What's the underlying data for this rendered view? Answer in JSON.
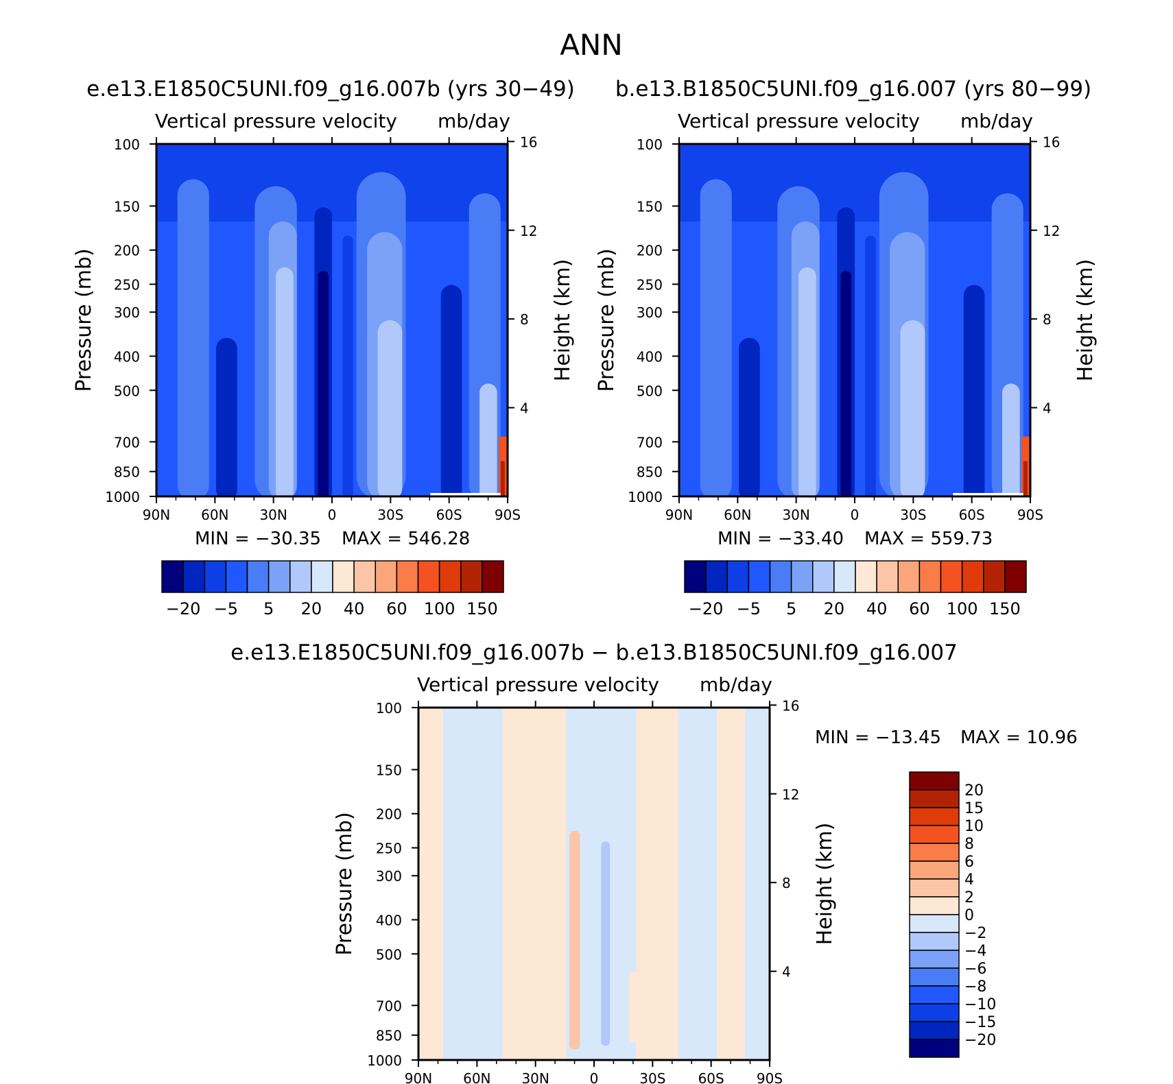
{
  "figure": {
    "title": "ANN",
    "diff_title": "e.e13.E1850C5UNI.f09_g16.007b − b.e13.B1850C5UNI.f09_g16.007"
  },
  "chart_data": [
    {
      "type": "heatmap",
      "case": "e.e13.E1850C5UNI.f09_g16.007b (yrs 30−49)",
      "title": "Vertical pressure velocity",
      "units": "mb/day",
      "xlabel": "",
      "ylabel": "Pressure (mb)",
      "ylabel_right": "Height (km)",
      "x_ticks": [
        "90N",
        "60N",
        "30N",
        "0",
        "30S",
        "60S",
        "90S"
      ],
      "y_ticks": [
        "100",
        "150",
        "200",
        "250",
        "300",
        "400",
        "500",
        "700",
        "850",
        "1000"
      ],
      "y_ticks_right": [
        "16",
        "12",
        "8",
        "4"
      ],
      "ylim": [
        1000,
        100
      ],
      "min_label": "MIN =  −30.35",
      "max_label": "MAX =  546.28",
      "min": -30.35,
      "max": 546.28,
      "colorbar": {
        "orientation": "horizontal",
        "labels": [
          "−20",
          "−5",
          "5",
          "20",
          "40",
          "60",
          "100",
          "150"
        ],
        "colors": [
          "#00007f",
          "#0026bf",
          "#0d3ee6",
          "#2057ff",
          "#4a7df5",
          "#7ba2f7",
          "#b0c9fa",
          "#d8e8fb",
          "#fde8d6",
          "#fcc6a6",
          "#fba57b",
          "#fa7c48",
          "#f45321",
          "#df3b0b",
          "#b22305",
          "#7f0000"
        ]
      }
    },
    {
      "type": "heatmap",
      "case": "b.e13.B1850C5UNI.f09_g16.007 (yrs 80−99)",
      "title": "Vertical pressure velocity",
      "units": "mb/day",
      "xlabel": "",
      "ylabel": "Pressure (mb)",
      "ylabel_right": "Height (km)",
      "x_ticks": [
        "90N",
        "60N",
        "30N",
        "0",
        "30S",
        "60S",
        "90S"
      ],
      "y_ticks": [
        "100",
        "150",
        "200",
        "250",
        "300",
        "400",
        "500",
        "700",
        "850",
        "1000"
      ],
      "y_ticks_right": [
        "16",
        "12",
        "8",
        "4"
      ],
      "ylim": [
        1000,
        100
      ],
      "min_label": "MIN =  −33.40",
      "max_label": "MAX =  559.73",
      "min": -33.4,
      "max": 559.73,
      "colorbar": {
        "orientation": "horizontal",
        "labels": [
          "−20",
          "−5",
          "5",
          "20",
          "40",
          "60",
          "100",
          "150"
        ],
        "colors": [
          "#00007f",
          "#0026bf",
          "#0d3ee6",
          "#2057ff",
          "#4a7df5",
          "#7ba2f7",
          "#b0c9fa",
          "#d8e8fb",
          "#fde8d6",
          "#fcc6a6",
          "#fba57b",
          "#fa7c48",
          "#f45321",
          "#df3b0b",
          "#b22305",
          "#7f0000"
        ]
      }
    },
    {
      "type": "heatmap",
      "case": "difference",
      "title": "Vertical pressure velocity",
      "units": "mb/day",
      "xlabel": "",
      "ylabel": "Pressure (mb)",
      "ylabel_right": "Height (km)",
      "x_ticks": [
        "90N",
        "60N",
        "30N",
        "0",
        "30S",
        "60S",
        "90S"
      ],
      "y_ticks": [
        "100",
        "150",
        "200",
        "250",
        "300",
        "400",
        "500",
        "700",
        "850",
        "1000"
      ],
      "y_ticks_right": [
        "16",
        "12",
        "8",
        "4"
      ],
      "ylim": [
        1000,
        100
      ],
      "min_label": "MIN =  −13.45",
      "max_label": "MAX =    10.96",
      "min": -13.45,
      "max": 10.96,
      "colorbar": {
        "orientation": "vertical",
        "labels": [
          "20",
          "15",
          "10",
          "8",
          "6",
          "4",
          "2",
          "0",
          "−2",
          "−4",
          "−6",
          "−8",
          "−10",
          "−15",
          "−20"
        ],
        "colors": [
          "#7f0000",
          "#b22305",
          "#df3b0b",
          "#f45321",
          "#fa7c48",
          "#fba57b",
          "#fcc6a6",
          "#fde8d6",
          "#d8e8fb",
          "#b0c9fa",
          "#7ba2f7",
          "#4a7df5",
          "#2057ff",
          "#0d3ee6",
          "#0026bf",
          "#00007f"
        ]
      }
    }
  ]
}
